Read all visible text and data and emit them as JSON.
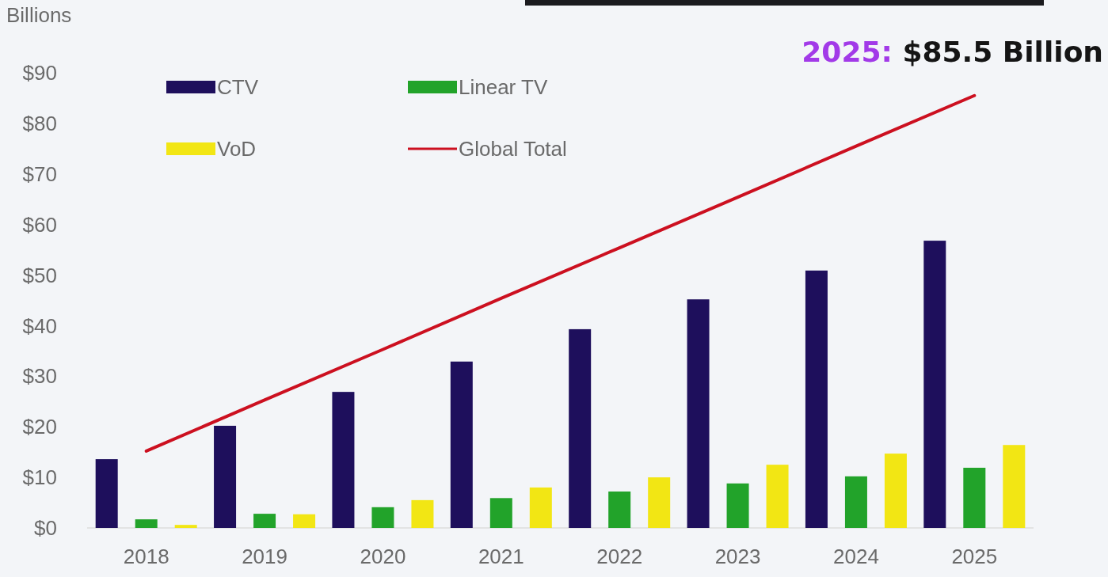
{
  "chart_data": {
    "type": "bar",
    "ylabel": "Billions",
    "categories": [
      "2018",
      "2019",
      "2020",
      "2021",
      "2022",
      "2023",
      "2024",
      "2025"
    ],
    "series": [
      {
        "name": "CTV",
        "color": "#1e0f5c",
        "values": [
          13.6,
          20.2,
          26.9,
          32.9,
          39.3,
          45.2,
          50.9,
          56.8
        ]
      },
      {
        "name": "Linear TV",
        "color": "#22a32a",
        "values": [
          1.7,
          2.8,
          4.1,
          5.9,
          7.2,
          8.8,
          10.2,
          11.9
        ]
      },
      {
        "name": "VoD",
        "color": "#f2e614",
        "values": [
          0.6,
          2.7,
          5.5,
          8.0,
          10.0,
          12.5,
          14.7,
          16.4
        ]
      },
      {
        "name": "Global Total",
        "type": "line",
        "color": "#cc1020",
        "values": [
          15.2,
          25.3,
          35.3,
          45.4,
          55.4,
          65.4,
          75.5,
          85.5
        ]
      }
    ],
    "ylim": [
      0,
      90
    ],
    "yticks": [
      {
        "value": 0,
        "label": "$0"
      },
      {
        "value": 10,
        "label": "$10"
      },
      {
        "value": 20,
        "label": "$20"
      },
      {
        "value": 30,
        "label": "$30"
      },
      {
        "value": 40,
        "label": "$40"
      },
      {
        "value": 50,
        "label": "$50"
      },
      {
        "value": 60,
        "label": "$60"
      },
      {
        "value": 70,
        "label": "$70"
      },
      {
        "value": 80,
        "label": "$80"
      },
      {
        "value": 90,
        "label": "$90"
      }
    ],
    "grid": false,
    "legend": "top left",
    "annotations": [
      {
        "text": "2025: $85.5 Billion",
        "x": "2025",
        "y": 85.5
      }
    ]
  }
}
